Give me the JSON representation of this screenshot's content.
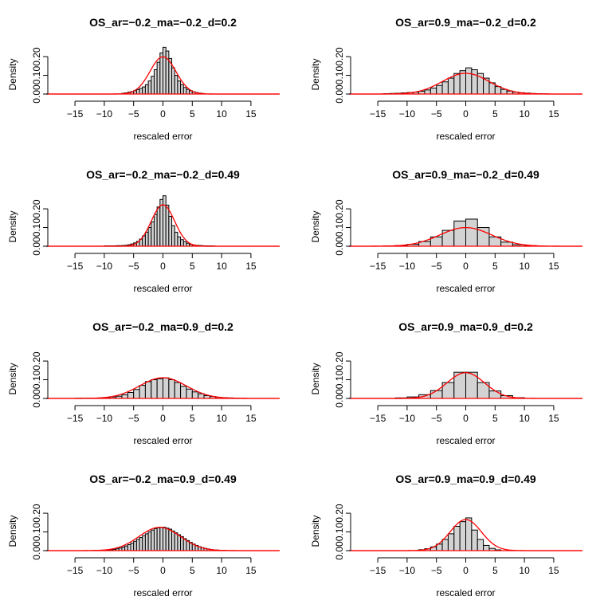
{
  "chart_data": [
    {
      "type": "bar",
      "title": "OS_ar=−0.2_ma=−0.2_d=0.2",
      "xlabel": "rescaled error",
      "ylabel": "Density",
      "xlim": [
        -18,
        18
      ],
      "ylim": [
        0,
        0.26
      ],
      "xticks": [
        "−15",
        "−10",
        "−5",
        "0",
        "5",
        "10",
        "15"
      ],
      "yticks": [
        "0.00",
        "0.10",
        "0.20"
      ],
      "bin_edges": [
        -7,
        -6.5,
        -6,
        -5.5,
        -5,
        -4.5,
        -4,
        -3.5,
        -3,
        -2.5,
        -2,
        -1.5,
        -1,
        -0.5,
        0,
        0.5,
        1,
        1.5,
        2,
        2.5,
        3,
        3.5,
        4,
        4.5,
        5,
        5.5,
        6,
        6.5,
        7
      ],
      "values": [
        0.004,
        0.006,
        0.01,
        0.013,
        0.018,
        0.024,
        0.03,
        0.038,
        0.05,
        0.07,
        0.095,
        0.13,
        0.17,
        0.22,
        0.25,
        0.23,
        0.19,
        0.14,
        0.1,
        0.07,
        0.05,
        0.035,
        0.025,
        0.018,
        0.012,
        0.008,
        0.005,
        0.003
      ],
      "curve": {
        "mean": 0,
        "sd": 2.0
      }
    },
    {
      "type": "bar",
      "title": "OS_ar=0.9_ma=−0.2_d=0.2",
      "xlabel": "rescaled error",
      "ylabel": "Density",
      "xlim": [
        -18,
        18
      ],
      "ylim": [
        0,
        0.26
      ],
      "xticks": [
        "−15",
        "−10",
        "−5",
        "0",
        "5",
        "10",
        "15"
      ],
      "yticks": [
        "0.00",
        "0.10",
        "0.20"
      ],
      "bin_edges": [
        -14,
        -13,
        -12,
        -11,
        -10,
        -9,
        -8,
        -7,
        -6,
        -5,
        -4,
        -3,
        -2,
        -1,
        0,
        1,
        2,
        3,
        4,
        5,
        6,
        7,
        8,
        9,
        10,
        11,
        12,
        13,
        14
      ],
      "values": [
        0.002,
        0.003,
        0.004,
        0.006,
        0.008,
        0.01,
        0.015,
        0.022,
        0.032,
        0.046,
        0.065,
        0.085,
        0.11,
        0.125,
        0.14,
        0.13,
        0.11,
        0.085,
        0.06,
        0.04,
        0.025,
        0.016,
        0.01,
        0.007,
        0.005,
        0.003,
        0.002,
        0.001
      ],
      "curve": {
        "mean": 0,
        "sd": 3.6
      }
    },
    {
      "type": "bar",
      "title": "OS_ar=−0.2_ma=−0.2_d=0.49",
      "xlabel": "rescaled error",
      "ylabel": "Density",
      "xlim": [
        -18,
        18
      ],
      "ylim": [
        0,
        0.26
      ],
      "xticks": [
        "−15",
        "−10",
        "−5",
        "0",
        "5",
        "10",
        "15"
      ],
      "yticks": [
        "0.00",
        "0.10",
        "0.20"
      ],
      "bin_edges": [
        -10,
        -9.5,
        -9,
        -8.5,
        -8,
        -7.5,
        -7,
        -6.5,
        -6,
        -5.5,
        -5,
        -4.5,
        -4,
        -3.5,
        -3,
        -2.5,
        -2,
        -1.5,
        -1,
        -0.5,
        0,
        0.5,
        1,
        1.5,
        2,
        2.5,
        3,
        3.5,
        4,
        4.5,
        5,
        5.5,
        6,
        6.5,
        7,
        7.5,
        8,
        8.5,
        9
      ],
      "values": [
        0.002,
        0.002,
        0.002,
        0.002,
        0.003,
        0.003,
        0.004,
        0.005,
        0.008,
        0.012,
        0.018,
        0.026,
        0.038,
        0.055,
        0.075,
        0.1,
        0.13,
        0.17,
        0.21,
        0.25,
        0.27,
        0.22,
        0.16,
        0.11,
        0.075,
        0.05,
        0.035,
        0.024,
        0.016,
        0.01,
        0.007,
        0.005,
        0.004,
        0.003,
        0.002,
        0.002,
        0.002,
        0.001
      ],
      "curve": {
        "mean": 0,
        "sd": 1.8
      }
    },
    {
      "type": "bar",
      "title": "OS_ar=0.9_ma=−0.2_d=0.49",
      "xlabel": "rescaled error",
      "ylabel": "Density",
      "xlim": [
        -18,
        18
      ],
      "ylim": [
        0,
        0.26
      ],
      "xticks": [
        "−15",
        "−10",
        "−5",
        "0",
        "5",
        "10",
        "15"
      ],
      "yticks": [
        "0.00",
        "0.10",
        "0.20"
      ],
      "bin_edges": [
        -14,
        -12,
        -10,
        -8,
        -6,
        -4,
        -2,
        0,
        2,
        4,
        6,
        8,
        10,
        12
      ],
      "values": [
        0.002,
        0.004,
        0.01,
        0.025,
        0.05,
        0.085,
        0.135,
        0.145,
        0.1,
        0.05,
        0.022,
        0.008,
        0.003
      ],
      "curve": {
        "mean": 0,
        "sd": 4.0
      }
    },
    {
      "type": "bar",
      "title": "OS_ar=−0.2_ma=0.9_d=0.2",
      "xlabel": "rescaled error",
      "ylabel": "Density",
      "xlim": [
        -18,
        18
      ],
      "ylim": [
        0,
        0.26
      ],
      "xticks": [
        "−15",
        "−10",
        "−5",
        "0",
        "5",
        "10",
        "15"
      ],
      "yticks": [
        "0.00",
        "0.10",
        "0.20"
      ],
      "bin_edges": [
        -15,
        -14,
        -13,
        -12,
        -11,
        -10,
        -9,
        -8,
        -7,
        -6,
        -5,
        -4,
        -3,
        -2,
        -1,
        0,
        1,
        2,
        3,
        4,
        5,
        6,
        7,
        8,
        9,
        10,
        11,
        12,
        13,
        14
      ],
      "values": [
        0.001,
        0.001,
        0.002,
        0.002,
        0.003,
        0.005,
        0.008,
        0.012,
        0.02,
        0.032,
        0.048,
        0.07,
        0.09,
        0.1,
        0.105,
        0.11,
        0.1,
        0.085,
        0.065,
        0.05,
        0.035,
        0.025,
        0.015,
        0.01,
        0.006,
        0.004,
        0.003,
        0.002,
        0.001
      ],
      "curve": {
        "mean": 0,
        "sd": 3.6
      }
    },
    {
      "type": "bar",
      "title": "OS_ar=0.9_ma=0.9_d=0.2",
      "xlabel": "rescaled error",
      "ylabel": "Density",
      "xlim": [
        -18,
        18
      ],
      "ylim": [
        0,
        0.26
      ],
      "xticks": [
        "−15",
        "−10",
        "−5",
        "0",
        "5",
        "10",
        "15"
      ],
      "yticks": [
        "0.00",
        "0.10",
        "0.20"
      ],
      "bin_edges": [
        -12,
        -10,
        -8,
        -6,
        -4,
        -2,
        0,
        2,
        4,
        6,
        8,
        10
      ],
      "values": [
        0.003,
        0.008,
        0.02,
        0.042,
        0.085,
        0.14,
        0.14,
        0.085,
        0.04,
        0.015,
        0.004
      ],
      "curve": {
        "mean": 0,
        "sd": 2.9
      }
    },
    {
      "type": "bar",
      "title": "OS_ar=−0.2_ma=0.9_d=0.49",
      "xlabel": "rescaled error",
      "ylabel": "Density",
      "xlim": [
        -18,
        18
      ],
      "ylim": [
        0,
        0.26
      ],
      "xticks": [
        "−15",
        "−10",
        "−5",
        "0",
        "5",
        "10",
        "15"
      ],
      "yticks": [
        "0.00",
        "0.10",
        "0.20"
      ],
      "bin_edges": [
        -12,
        -11.5,
        -11,
        -10.5,
        -10,
        -9.5,
        -9,
        -8.5,
        -8,
        -7.5,
        -7,
        -6.5,
        -6,
        -5.5,
        -5,
        -4.5,
        -4,
        -3.5,
        -3,
        -2.5,
        -2,
        -1.5,
        -1,
        -0.5,
        0,
        0.5,
        1,
        1.5,
        2,
        2.5,
        3,
        3.5,
        4,
        4.5,
        5,
        5.5,
        6,
        6.5,
        7,
        7.5,
        8,
        8.5,
        9,
        9.5,
        10,
        10.5,
        11
      ],
      "values": [
        0.001,
        0.001,
        0.002,
        0.002,
        0.003,
        0.004,
        0.005,
        0.007,
        0.01,
        0.014,
        0.019,
        0.025,
        0.032,
        0.04,
        0.05,
        0.06,
        0.07,
        0.08,
        0.09,
        0.1,
        0.11,
        0.118,
        0.122,
        0.125,
        0.125,
        0.12,
        0.115,
        0.105,
        0.095,
        0.085,
        0.075,
        0.064,
        0.054,
        0.044,
        0.035,
        0.028,
        0.021,
        0.016,
        0.012,
        0.009,
        0.006,
        0.004,
        0.003,
        0.002,
        0.002,
        0.001
      ],
      "curve": {
        "mean": -0.5,
        "sd": 3.2
      }
    },
    {
      "type": "bar",
      "title": "OS_ar=0.9_ma=0.9_d=0.49",
      "xlabel": "rescaled error",
      "ylabel": "Density",
      "xlim": [
        -18,
        18
      ],
      "ylim": [
        0,
        0.26
      ],
      "xticks": [
        "−15",
        "−10",
        "−5",
        "0",
        "5",
        "10",
        "15"
      ],
      "yticks": [
        "0.00",
        "0.10",
        "0.20"
      ],
      "bin_edges": [
        -8,
        -7,
        -6,
        -5,
        -4,
        -3,
        -2,
        -1,
        0,
        1,
        2,
        3,
        4,
        5,
        6
      ],
      "values": [
        0.005,
        0.01,
        0.02,
        0.035,
        0.06,
        0.09,
        0.13,
        0.155,
        0.175,
        0.11,
        0.06,
        0.028,
        0.012,
        0.004
      ],
      "curve": {
        "mean": 0,
        "sd": 2.4
      }
    }
  ]
}
